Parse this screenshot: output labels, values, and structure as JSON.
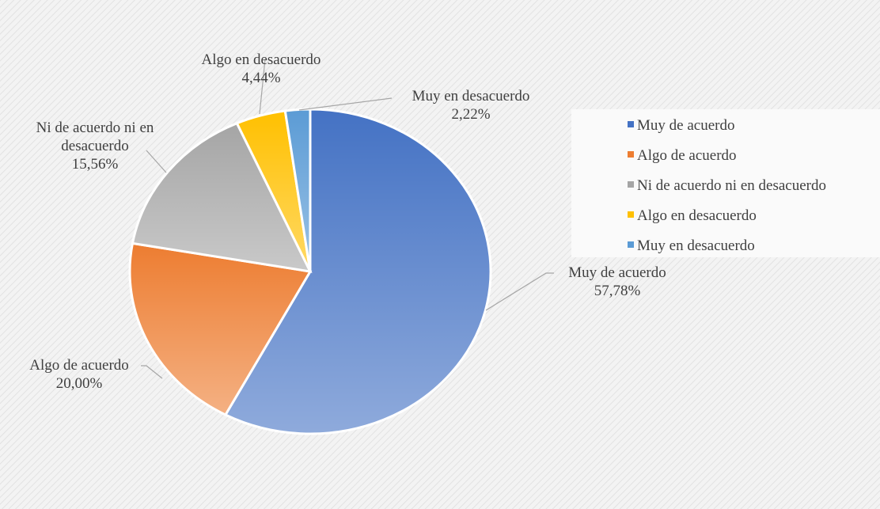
{
  "chart_data": {
    "type": "pie",
    "categories": [
      "Muy de acuerdo",
      "Algo de acuerdo",
      "Ni de acuerdo ni en desacuerdo",
      "Algo en desacuerdo",
      "Muy en desacuerdo"
    ],
    "values": [
      57.78,
      20.0,
      15.56,
      4.44,
      2.22
    ],
    "value_labels": [
      "57,78%",
      "20,00%",
      "15,56%",
      "4,44%",
      "2,22%"
    ],
    "colors": [
      "#4472c4",
      "#ed7d31",
      "#a5a5a5",
      "#ffc000",
      "#5b9bd5"
    ]
  }
}
